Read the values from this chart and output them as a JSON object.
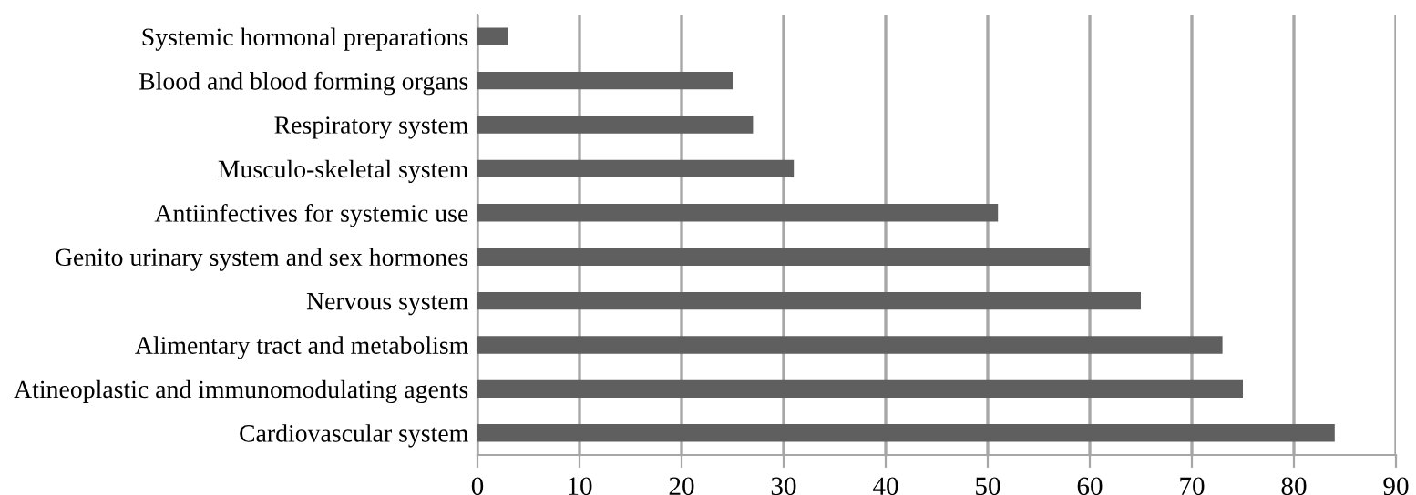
{
  "chart_data": {
    "type": "bar",
    "orientation": "horizontal",
    "categories": [
      "Systemic hormonal preparations",
      "Blood and blood forming organs",
      "Respiratory system",
      "Musculo-skeletal system",
      "Antiinfectives for systemic use",
      "Genito urinary system and sex hormones",
      "Nervous system",
      "Alimentary tract and metabolism",
      "Atineoplastic and immunomodulating agents",
      "Cardiovascular system"
    ],
    "values": [
      3,
      25,
      27,
      31,
      51,
      60,
      65,
      73,
      75,
      84
    ],
    "color": "#5f5f5f",
    "xlim": [
      0,
      90
    ],
    "xticks": [
      0,
      10,
      20,
      30,
      40,
      50,
      60,
      70,
      80,
      90
    ],
    "grid": "x"
  }
}
